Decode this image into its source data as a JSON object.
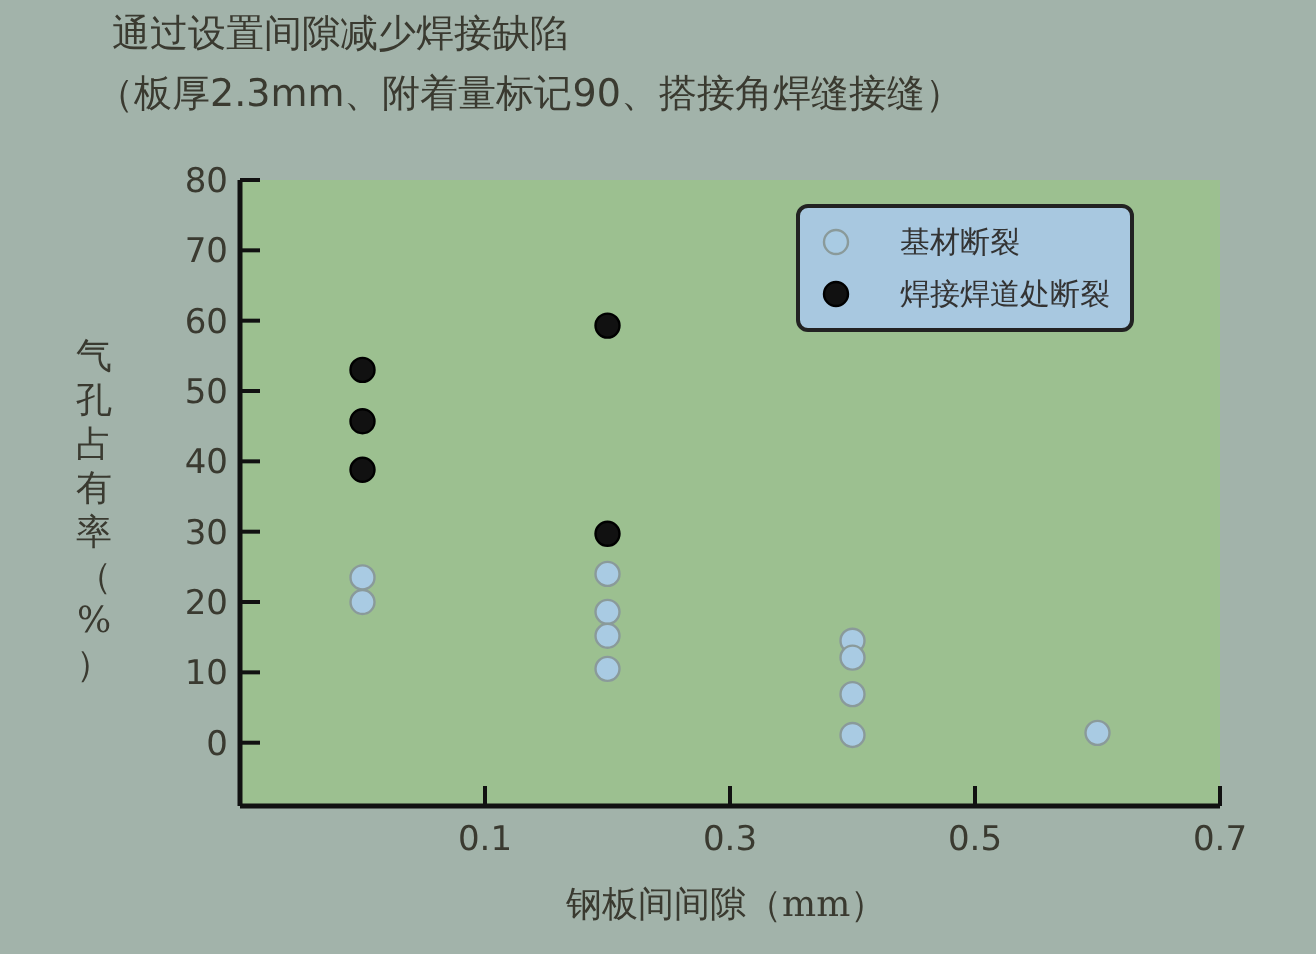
{
  "chart_data": {
    "type": "scatter",
    "title": "通过设置间隙减少焊接缺陷",
    "subtitle": "（板厚2.3mm、附着量标记90、搭接角焊缝接缝）",
    "xlabel": "钢板间间隙（mm）",
    "ylabel": "气孔占有率（%）",
    "xlim": [
      -0.1,
      0.7
    ],
    "xticks": [
      0.1,
      0.3,
      0.5,
      0.7
    ],
    "ylim": [
      -9,
      80
    ],
    "yticks": [
      0,
      10,
      20,
      30,
      40,
      50,
      60,
      70,
      80
    ],
    "grid": false,
    "legend": "top right",
    "marker": "circle",
    "series": [
      {
        "name": "基材断裂",
        "color": "#a9cbe3",
        "x": [
          0,
          0,
          0.2,
          0.2,
          0.2,
          0.2,
          0.4,
          0.4,
          0.4,
          0.4,
          0.6
        ],
        "values": [
          23.5,
          20,
          24,
          18.6,
          15.2,
          10.5,
          14.5,
          12.1,
          6.9,
          1.1,
          1.4
        ]
      },
      {
        "name": "焊接焊道处断裂",
        "color": "#111111",
        "x": [
          0,
          0,
          0,
          0.2,
          0.2
        ],
        "values": [
          53,
          45.7,
          38.8,
          59.3,
          29.7
        ]
      }
    ]
  }
}
